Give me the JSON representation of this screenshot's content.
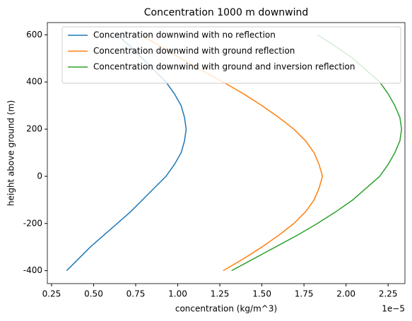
{
  "chart_data": {
    "type": "line",
    "title": "Concentration 1000 m downwind",
    "x_label": "concentration (kg/m^3)",
    "y_label": "height above ground (m)",
    "x_offset_label": "1e−5",
    "y": [
      -400,
      -350,
      -300,
      -250,
      -200,
      -150,
      -100,
      -50,
      0,
      50,
      100,
      150,
      200,
      250,
      300,
      350,
      400,
      450,
      500,
      550,
      600
    ],
    "series": [
      {
        "name": "Concentration downwind with no reflection",
        "color": "#1f77b4",
        "values": [
          0.34,
          0.41,
          0.48,
          0.56,
          0.64,
          0.72,
          0.79,
          0.86,
          0.93,
          0.98,
          1.02,
          1.04,
          1.05,
          1.04,
          1.02,
          0.98,
          0.93,
          0.86,
          0.79,
          0.72,
          0.64
        ]
      },
      {
        "name": "Concentration downwind with ground reflection",
        "color": "#ff7f0e",
        "values": [
          1.27,
          1.39,
          1.5,
          1.6,
          1.69,
          1.76,
          1.81,
          1.84,
          1.86,
          1.84,
          1.81,
          1.76,
          1.69,
          1.6,
          1.5,
          1.39,
          1.27,
          1.14,
          1.02,
          0.9,
          0.78
        ]
      },
      {
        "name": "Concentration downwind with ground and inversion reflection",
        "color": "#2ca02c",
        "values": [
          1.32,
          1.45,
          1.58,
          1.71,
          1.83,
          1.94,
          2.04,
          2.12,
          2.2,
          2.25,
          2.29,
          2.32,
          2.33,
          2.32,
          2.29,
          2.25,
          2.2,
          2.12,
          2.04,
          1.94,
          1.83
        ]
      }
    ],
    "xlim": [
      0.225,
      2.35
    ],
    "xticks": [
      0.25,
      {
        "value": 0.5,
        "label": "0.50"
      },
      0.75,
      {
        "value": 1,
        "label": "1.00"
      },
      1.25,
      {
        "value": 1.5,
        "label": "1.50"
      },
      1.75,
      {
        "value": 2,
        "label": "2.00"
      },
      2.25
    ],
    "ylim": [
      -455,
      652
    ],
    "yticks": [
      -400,
      -200,
      0,
      200,
      400,
      600
    ],
    "legend": "upper-left"
  }
}
